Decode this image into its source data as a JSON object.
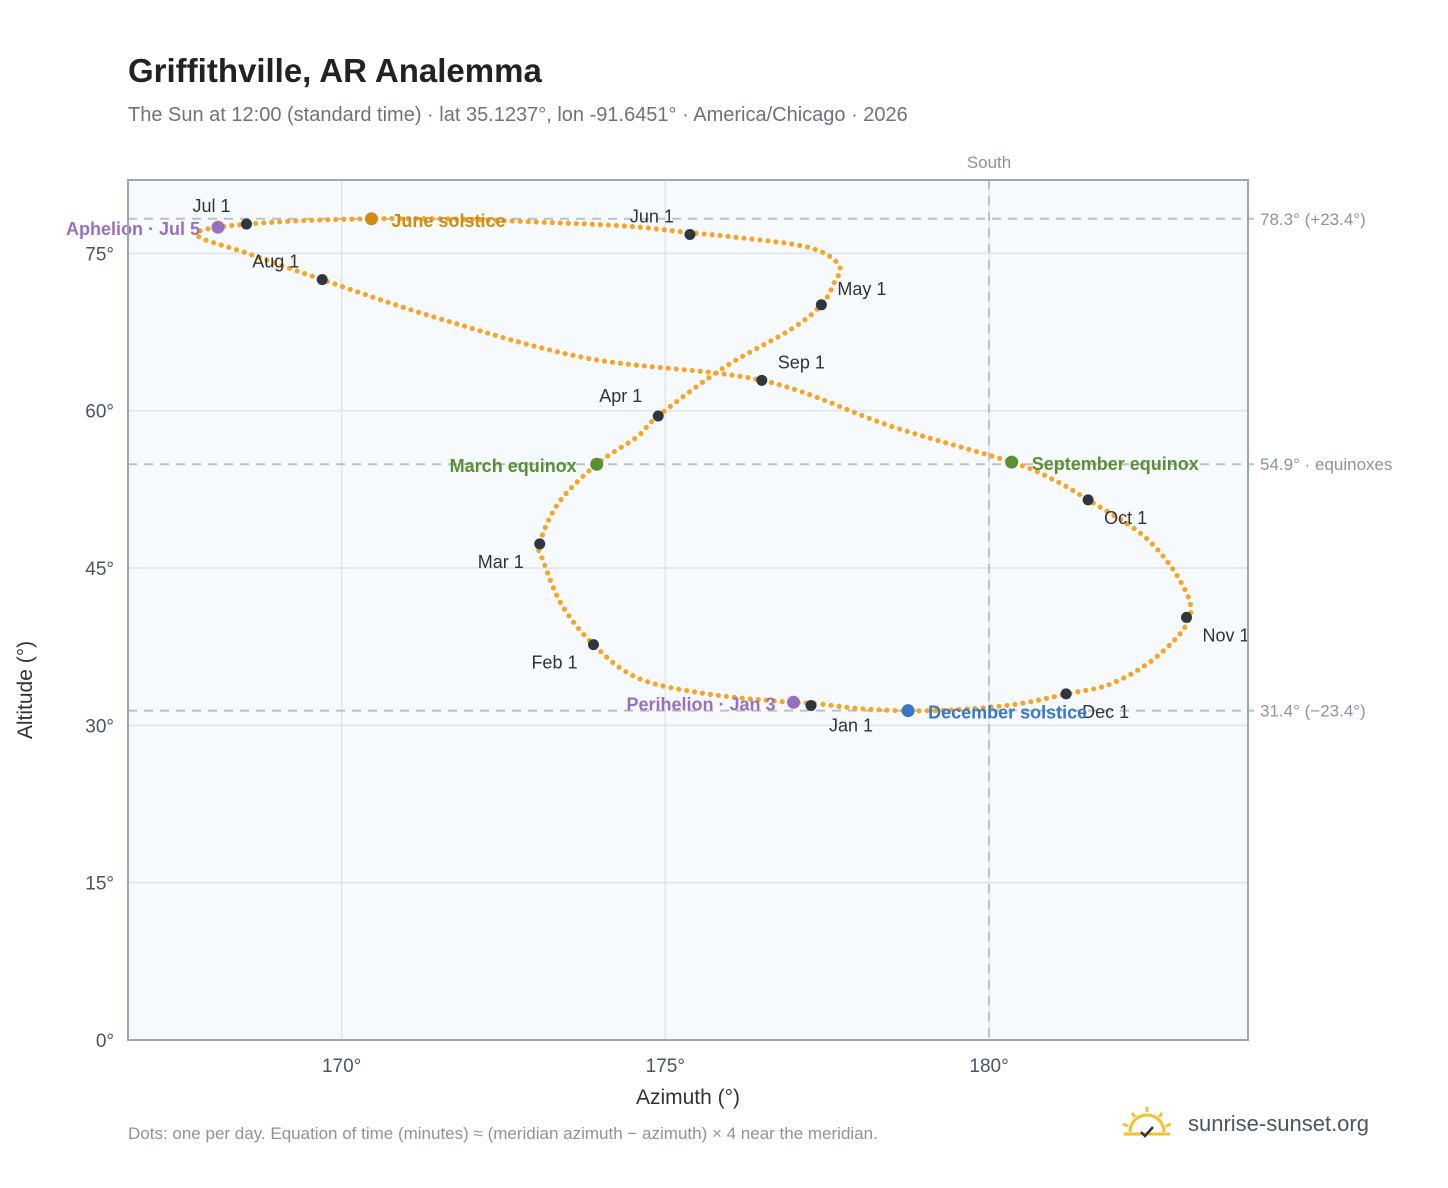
{
  "title": "Griffithville, AR Analemma",
  "subtitle": "The Sun at 12:00 (standard time) · lat 35.1237°, lon -91.6451° · America/Chicago · 2026",
  "footnote": "Dots: one per day. Equation of time (minutes) ≈ (meridian azimuth − azimuth) × 4 near the meridian.",
  "brand": {
    "text": "sunrise-sunset.org",
    "icon": "sun-horizon-icon"
  },
  "colors": {
    "path": "#f4a62a",
    "month_marker": "#2f3640",
    "solstice_june": "#d18b12",
    "solstice_december": "#3a78c2",
    "equinox": "#5a8f32",
    "apsis": "#9b6fbf",
    "reference": "#b6c2cc",
    "plot_bg": "#f7fafd",
    "grid": "#dde5ec",
    "frame": "#9aa6b4"
  },
  "chart_data": {
    "type": "scatter",
    "title": "Griffithville, AR Analemma",
    "xlabel": "Azimuth (°)",
    "ylabel": "Altitude (°)",
    "xlim": [
      166.7,
      184.0
    ],
    "ylim": [
      0,
      82
    ],
    "x_ticks": [
      {
        "value": 170,
        "label": "170°"
      },
      {
        "value": 175,
        "label": "175°"
      },
      {
        "value": 180,
        "label": "180°"
      }
    ],
    "y_ticks": [
      {
        "value": 0,
        "label": "0°"
      },
      {
        "value": 15,
        "label": "15°"
      },
      {
        "value": 30,
        "label": "30°"
      },
      {
        "value": 45,
        "label": "45°"
      },
      {
        "value": 60,
        "label": "60°"
      },
      {
        "value": 75,
        "label": "75°"
      }
    ],
    "grid": true,
    "south_line": {
      "azimuth": 180,
      "label": "South"
    },
    "reference_lines": [
      {
        "altitude": 78.3,
        "label": "78.3° (+23.4°)"
      },
      {
        "altitude": 54.9,
        "label": "54.9° · equinoxes"
      },
      {
        "altitude": 31.4,
        "label": "31.4° (−23.4°)"
      }
    ],
    "series": [
      {
        "points": [
          [
            177.3,
            32.1
          ],
          [
            176.92,
            32.2
          ],
          [
            175.65,
            33.0
          ],
          [
            174.58,
            34.5
          ],
          [
            173.89,
            37.7
          ],
          [
            173.4,
            41.5
          ],
          [
            173.12,
            45.6
          ],
          [
            173.06,
            47.3
          ],
          [
            173.35,
            51.2
          ],
          [
            173.94,
            54.9
          ],
          [
            174.56,
            57.5
          ],
          [
            174.89,
            59.5
          ],
          [
            175.9,
            64.1
          ],
          [
            176.95,
            67.8
          ],
          [
            177.41,
            70.1
          ],
          [
            177.6,
            72.1
          ],
          [
            177.68,
            73.9
          ],
          [
            177.2,
            75.6
          ],
          [
            176.0,
            76.6
          ],
          [
            175.35,
            77.0
          ],
          [
            174.4,
            77.6
          ],
          [
            173.0,
            78.0
          ],
          [
            171.6,
            78.3
          ],
          [
            170.4,
            78.3
          ],
          [
            169.3,
            78.1
          ],
          [
            168.55,
            77.8
          ],
          [
            168.1,
            77.5
          ],
          [
            167.8,
            77.1
          ],
          [
            167.85,
            76.4
          ],
          [
            168.5,
            75.1
          ],
          [
            169.7,
            72.5
          ],
          [
            171.5,
            68.8
          ],
          [
            173.8,
            65.0
          ],
          [
            176.49,
            62.9
          ],
          [
            178.5,
            58.5
          ],
          [
            180.35,
            55.1
          ],
          [
            181.0,
            53.4
          ],
          [
            181.53,
            51.5
          ],
          [
            182.4,
            48.0
          ],
          [
            182.95,
            43.8
          ],
          [
            183.1,
            40.3
          ],
          [
            182.6,
            36.6
          ],
          [
            181.9,
            34.0
          ],
          [
            181.2,
            33.0
          ],
          [
            180.4,
            32.0
          ],
          [
            179.5,
            31.5
          ],
          [
            178.75,
            31.4
          ],
          [
            178.0,
            31.6
          ],
          [
            177.3,
            32.1
          ]
        ]
      }
    ],
    "month_markers": [
      {
        "label": "Jan 1",
        "az": 177.25,
        "alt": 31.9
      },
      {
        "label": "Feb 1",
        "az": 173.89,
        "alt": 37.7
      },
      {
        "label": "Mar 1",
        "az": 173.06,
        "alt": 47.3
      },
      {
        "label": "Apr 1",
        "az": 174.89,
        "alt": 59.5
      },
      {
        "label": "May 1",
        "az": 177.41,
        "alt": 70.1
      },
      {
        "label": "Jun 1",
        "az": 175.38,
        "alt": 76.8
      },
      {
        "label": "Jul 1",
        "az": 168.53,
        "alt": 77.8
      },
      {
        "label": "Aug 1",
        "az": 169.7,
        "alt": 72.5
      },
      {
        "label": "Sep 1",
        "az": 176.49,
        "alt": 62.9
      },
      {
        "label": "Oct 1",
        "az": 181.53,
        "alt": 51.5
      },
      {
        "label": "Nov 1",
        "az": 183.05,
        "alt": 40.3
      },
      {
        "label": "Dec 1",
        "az": 181.19,
        "alt": 33.0
      }
    ],
    "events": [
      {
        "label": "June solstice",
        "az": 170.46,
        "alt": 78.3,
        "kind": "solstice_june"
      },
      {
        "label": "December solstice",
        "az": 178.75,
        "alt": 31.4,
        "kind": "solstice_december"
      },
      {
        "label": "March equinox",
        "az": 173.94,
        "alt": 54.9,
        "kind": "equinox"
      },
      {
        "label": "September equinox",
        "az": 180.35,
        "alt": 55.1,
        "kind": "equinox"
      },
      {
        "label": "Aphelion · Jul 5",
        "az": 168.09,
        "alt": 77.5,
        "kind": "apsis"
      },
      {
        "label": "Perihelion · Jan 3",
        "az": 176.98,
        "alt": 32.2,
        "kind": "apsis"
      }
    ]
  }
}
